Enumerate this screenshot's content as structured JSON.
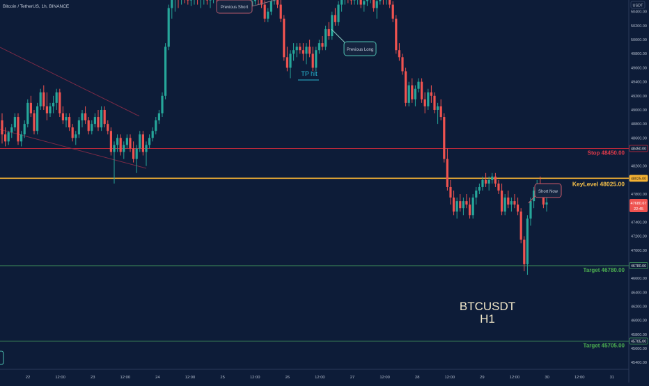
{
  "header": {
    "symbol_title": "Bitcoin / TetherUS, 1h, BINANCE"
  },
  "price_axis": {
    "currency": "USDT",
    "ticks": [
      50400,
      50200,
      50000,
      49800,
      49600,
      49400,
      49200,
      49000,
      48800,
      48600,
      48200,
      48000,
      47800,
      47400,
      47200,
      47000,
      46800,
      46600,
      46400,
      46200,
      46000,
      45800,
      45600,
      45400
    ],
    "current_price_label": "47680.67",
    "countdown_label": "22:45"
  },
  "time_axis": {
    "labels": [
      "22",
      "12:00",
      "23",
      "12:00",
      "24",
      "12:00",
      "25",
      "12:00",
      "26",
      "12:00",
      "27",
      "12:00",
      "28",
      "12:00",
      "29",
      "12:00",
      "30",
      "12:00",
      "31"
    ]
  },
  "levels": [
    {
      "name": "stop",
      "label": "Stop 48450.00",
      "axis_label": "48450.00",
      "price": 48450,
      "color": "#b7283a",
      "text_color": "#e03a4a"
    },
    {
      "name": "key",
      "label": "KeyLevel 48025.00",
      "axis_label": "48025.00",
      "price": 48025,
      "color": "#f5b233",
      "text_color": "#f7c14a"
    },
    {
      "name": "target1",
      "label": "Target 46780.00",
      "axis_label": "46780.00",
      "price": 46780,
      "color": "#3f8f5a",
      "text_color": "#4caf50"
    },
    {
      "name": "target2",
      "label": "Target 45705.00",
      "axis_label": "45705.00",
      "price": 45705,
      "color": "#3f8f5a",
      "text_color": "#4caf50"
    }
  ],
  "annotations": {
    "previous_short": "Previous Short",
    "previous_long": "Previous Long",
    "tp_hit": "TP hit",
    "short_now": "Short Now",
    "watermark_line1": "BTCUSDT",
    "watermark_line2": "H1"
  },
  "colors": {
    "bull": "#26a69a",
    "bear": "#ef5350",
    "background": "#0d1c38"
  },
  "chart_data": {
    "type": "candlestick",
    "y_range": [
      45400,
      50600
    ],
    "candles": [
      [
        48850,
        48950,
        48520,
        48650
      ],
      [
        48650,
        48750,
        48480,
        48550
      ],
      [
        48550,
        48700,
        48500,
        48680
      ],
      [
        48680,
        48800,
        48600,
        48750
      ],
      [
        48750,
        48950,
        48700,
        48900
      ],
      [
        48900,
        48950,
        48500,
        48550
      ],
      [
        48550,
        48700,
        48480,
        48650
      ],
      [
        48650,
        48850,
        48600,
        48800
      ],
      [
        48800,
        49150,
        48750,
        49100
      ],
      [
        49100,
        49200,
        48900,
        48950
      ],
      [
        48950,
        49000,
        48650,
        48700
      ],
      [
        48700,
        49100,
        48650,
        49050
      ],
      [
        49050,
        49300,
        49000,
        49250
      ],
      [
        49250,
        49350,
        49000,
        49050
      ],
      [
        49050,
        49250,
        48850,
        48950
      ],
      [
        48950,
        49100,
        48900,
        49050
      ],
      [
        49050,
        49200,
        48950,
        49100
      ],
      [
        49100,
        49300,
        49000,
        49250
      ],
      [
        49250,
        49300,
        48900,
        48950
      ],
      [
        48950,
        49050,
        48800,
        48850
      ],
      [
        48850,
        48950,
        48750,
        48900
      ],
      [
        48900,
        48950,
        48700,
        48750
      ],
      [
        48750,
        48800,
        48550,
        48600
      ],
      [
        48600,
        48700,
        48500,
        48650
      ],
      [
        48650,
        48900,
        48600,
        48850
      ],
      [
        48850,
        49000,
        48750,
        48950
      ],
      [
        48950,
        49050,
        48800,
        48850
      ],
      [
        48850,
        48900,
        48650,
        48700
      ],
      [
        48700,
        48850,
        48650,
        48800
      ],
      [
        48800,
        48950,
        48750,
        48900
      ],
      [
        48900,
        49000,
        48700,
        48750
      ],
      [
        48750,
        49050,
        48700,
        49000
      ],
      [
        49000,
        49050,
        48750,
        48800
      ],
      [
        48800,
        48850,
        48650,
        48700
      ],
      [
        48700,
        48750,
        48350,
        48400
      ],
      [
        48400,
        48550,
        47950,
        48500
      ],
      [
        48500,
        48650,
        48400,
        48600
      ],
      [
        48600,
        48650,
        48350,
        48400
      ],
      [
        48400,
        48550,
        48300,
        48500
      ],
      [
        48500,
        48650,
        48450,
        48600
      ],
      [
        48600,
        48650,
        48400,
        48450
      ],
      [
        48450,
        48550,
        48250,
        48300
      ],
      [
        48300,
        48500,
        48100,
        48450
      ],
      [
        48450,
        48700,
        48400,
        48650
      ],
      [
        48650,
        48700,
        48350,
        48400
      ],
      [
        48400,
        48550,
        48200,
        48500
      ],
      [
        48500,
        48650,
        48450,
        48600
      ],
      [
        48600,
        48750,
        48550,
        48700
      ],
      [
        48700,
        48900,
        48650,
        48850
      ],
      [
        48850,
        49000,
        48800,
        48950
      ],
      [
        48950,
        49250,
        48900,
        49200
      ],
      [
        49200,
        49950,
        49150,
        49900
      ],
      [
        49900,
        50500,
        49850,
        50450
      ],
      [
        50450,
        50650,
        50300,
        50600
      ],
      [
        50600,
        50650,
        50400,
        50620
      ],
      [
        50620,
        50660,
        50450,
        50600
      ],
      [
        50600,
        50650,
        50500,
        50620
      ],
      [
        50620,
        50660,
        50520,
        50600
      ],
      [
        50600,
        50650,
        50500,
        50560
      ],
      [
        50560,
        50620,
        50480,
        50580
      ],
      [
        50580,
        50650,
        50500,
        50620
      ],
      [
        50620,
        50660,
        50500,
        50580
      ],
      [
        50580,
        50640,
        50450,
        50600
      ],
      [
        50600,
        50660,
        50500,
        50610
      ],
      [
        50610,
        50640,
        50500,
        50560
      ],
      [
        50560,
        50620,
        50450,
        50600
      ],
      [
        50600,
        50660,
        50520,
        50620
      ],
      [
        50620,
        50650,
        50500,
        50580
      ],
      [
        50580,
        50620,
        50420,
        50450
      ],
      [
        50450,
        50550,
        50380,
        50500
      ],
      [
        50500,
        50620,
        50450,
        50580
      ],
      [
        50580,
        50650,
        50500,
        50600
      ],
      [
        50600,
        50650,
        50480,
        50520
      ],
      [
        50520,
        50600,
        50450,
        50560
      ],
      [
        50560,
        50630,
        50500,
        50590
      ],
      [
        50590,
        50650,
        50500,
        50600
      ],
      [
        50600,
        50660,
        50550,
        50620
      ],
      [
        50620,
        50650,
        50450,
        50480
      ],
      [
        50480,
        50580,
        50400,
        50550
      ],
      [
        50550,
        50640,
        50500,
        50600
      ],
      [
        50600,
        50650,
        50500,
        50580
      ],
      [
        50580,
        50640,
        50450,
        50500
      ],
      [
        50500,
        50560,
        50250,
        50300
      ],
      [
        50300,
        50450,
        50250,
        50400
      ],
      [
        50400,
        50600,
        50350,
        50550
      ],
      [
        50550,
        50650,
        50500,
        50600
      ],
      [
        50600,
        50650,
        50450,
        50500
      ],
      [
        50500,
        50600,
        50250,
        50300
      ],
      [
        50300,
        50350,
        49700,
        49750
      ],
      [
        49750,
        49900,
        49550,
        49600
      ],
      [
        49600,
        49850,
        49450,
        49800
      ],
      [
        49800,
        49950,
        49700,
        49850
      ],
      [
        49850,
        49950,
        49750,
        49900
      ],
      [
        49900,
        49950,
        49800,
        49850
      ],
      [
        49850,
        49950,
        49700,
        49800
      ],
      [
        49800,
        49950,
        49650,
        49900
      ],
      [
        49900,
        50000,
        49750,
        49800
      ],
      [
        49800,
        49900,
        49550,
        49600
      ],
      [
        49600,
        49900,
        49550,
        49850
      ],
      [
        49850,
        50000,
        49800,
        49950
      ],
      [
        49950,
        50050,
        49850,
        49900
      ],
      [
        49900,
        50200,
        49850,
        50150
      ],
      [
        50150,
        50250,
        50000,
        50050
      ],
      [
        50050,
        50400,
        50000,
        50350
      ],
      [
        50350,
        50450,
        50200,
        50250
      ],
      [
        50250,
        50550,
        50200,
        50500
      ],
      [
        50500,
        50620,
        50400,
        50600
      ],
      [
        50600,
        50650,
        50500,
        50620
      ],
      [
        50620,
        50660,
        50520,
        50600
      ],
      [
        50600,
        50650,
        50500,
        50560
      ],
      [
        50560,
        50640,
        50500,
        50600
      ],
      [
        50600,
        50650,
        50500,
        50620
      ],
      [
        50620,
        50660,
        50450,
        50500
      ],
      [
        50500,
        50600,
        50400,
        50550
      ],
      [
        50550,
        50650,
        50480,
        50600
      ],
      [
        50600,
        50660,
        50520,
        50620
      ],
      [
        50620,
        50650,
        50400,
        50450
      ],
      [
        50450,
        50600,
        50300,
        50550
      ],
      [
        50550,
        50650,
        50500,
        50600
      ],
      [
        50600,
        50650,
        50500,
        50580
      ],
      [
        50580,
        50650,
        50500,
        50620
      ],
      [
        50620,
        50660,
        50450,
        50500
      ],
      [
        50500,
        50550,
        50250,
        50300
      ],
      [
        50300,
        50350,
        49800,
        49850
      ],
      [
        49850,
        49950,
        49700,
        49750
      ],
      [
        49750,
        49800,
        49500,
        49550
      ],
      [
        49550,
        49600,
        49050,
        49100
      ],
      [
        49100,
        49400,
        49050,
        49350
      ],
      [
        49350,
        49450,
        49100,
        49150
      ],
      [
        49150,
        49350,
        49050,
        49300
      ],
      [
        49300,
        49450,
        49250,
        49400
      ],
      [
        49400,
        49450,
        49100,
        49150
      ],
      [
        49150,
        49250,
        48950,
        49050
      ],
      [
        49050,
        49300,
        49000,
        49250
      ],
      [
        49250,
        49350,
        49100,
        49200
      ],
      [
        49200,
        49250,
        48950,
        49000
      ],
      [
        49000,
        49100,
        48800,
        49050
      ],
      [
        49050,
        49150,
        48850,
        48900
      ],
      [
        48900,
        48950,
        48250,
        48300
      ],
      [
        48300,
        48450,
        47850,
        47900
      ],
      [
        47900,
        48000,
        47650,
        47750
      ],
      [
        47750,
        47850,
        47500,
        47550
      ],
      [
        47550,
        47750,
        47450,
        47700
      ],
      [
        47700,
        47800,
        47550,
        47600
      ],
      [
        47600,
        47750,
        47500,
        47700
      ],
      [
        47700,
        47800,
        47600,
        47650
      ],
      [
        47650,
        47750,
        47450,
        47500
      ],
      [
        47500,
        47800,
        47450,
        47750
      ],
      [
        47750,
        47900,
        47650,
        47850
      ],
      [
        47850,
        47950,
        47800,
        47900
      ],
      [
        47900,
        48050,
        47850,
        48000
      ],
      [
        48000,
        48100,
        47900,
        47950
      ],
      [
        47950,
        48050,
        47850,
        48000
      ],
      [
        48000,
        48100,
        47950,
        48050
      ],
      [
        48050,
        48100,
        47900,
        47950
      ],
      [
        47950,
        48000,
        47800,
        47850
      ],
      [
        47850,
        47950,
        47500,
        47550
      ],
      [
        47550,
        47800,
        47500,
        47750
      ],
      [
        47750,
        47850,
        47600,
        47650
      ],
      [
        47650,
        47750,
        47550,
        47700
      ],
      [
        47700,
        47800,
        47600,
        47650
      ],
      [
        47650,
        47750,
        47500,
        47550
      ],
      [
        47550,
        47600,
        47100,
        47150
      ],
      [
        47150,
        47200,
        46700,
        46800
      ],
      [
        46800,
        47500,
        46650,
        47450
      ],
      [
        47450,
        47750,
        47350,
        47700
      ],
      [
        47700,
        47900,
        47600,
        47850
      ],
      [
        47850,
        48000,
        47800,
        47950
      ],
      [
        47950,
        48050,
        47750,
        47800
      ],
      [
        47800,
        47850,
        47600,
        47650
      ],
      [
        47650,
        47750,
        47550,
        47680
      ]
    ],
    "levels": [
      48450,
      48025,
      46780,
      45705
    ]
  }
}
